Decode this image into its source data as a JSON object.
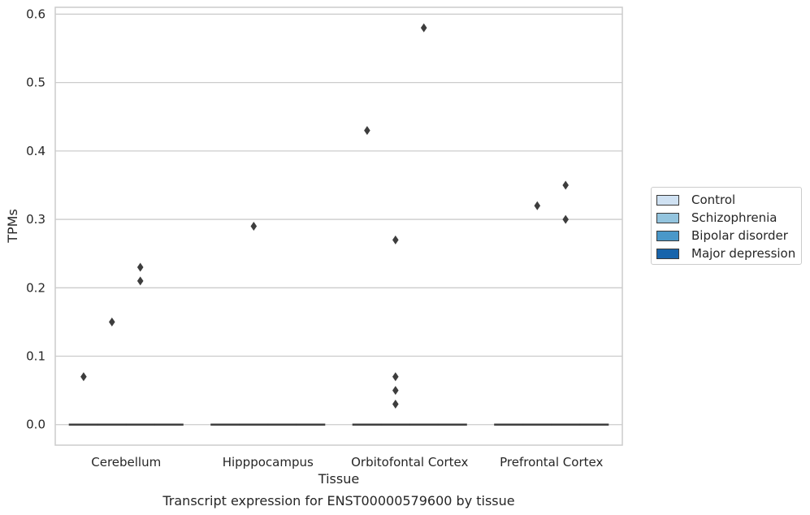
{
  "chart_data": {
    "type": "box",
    "title": "Transcript expression for ENST00000579600 by tissue",
    "xlabel": "Tissue",
    "ylabel": "TPMs",
    "ylim": [
      -0.03,
      0.61
    ],
    "yticks": [
      0.0,
      0.1,
      0.2,
      0.3,
      0.4,
      0.5,
      0.6
    ],
    "ytick_labels": [
      "0.0",
      "0.1",
      "0.2",
      "0.3",
      "0.4",
      "0.5",
      "0.6"
    ],
    "grid": "horizontal",
    "legend_position": "right, outside",
    "categories": [
      "Cerebellum",
      "Hipppocampus",
      "Orbitofontal Cortex",
      "Prefrontal Cortex"
    ],
    "series": [
      {
        "name": "Control",
        "color": "#cfe1f2",
        "median": [
          0,
          0,
          0,
          0
        ],
        "outliers": [
          [
            0.07
          ],
          [],
          [
            0.43
          ],
          []
        ]
      },
      {
        "name": "Schizophrenia",
        "color": "#93c4de",
        "median": [
          0,
          0,
          0,
          0
        ],
        "outliers": [
          [
            0.15
          ],
          [
            0.29
          ],
          [
            0.27,
            0.07,
            0.05,
            0.03
          ],
          [
            0.32
          ]
        ]
      },
      {
        "name": "Bipolar disorder",
        "color": "#4a98c9",
        "median": [
          0,
          0,
          0,
          0
        ],
        "outliers": [
          [
            0.23,
            0.21
          ],
          [],
          [
            0.58
          ],
          [
            0.35,
            0.3
          ]
        ]
      },
      {
        "name": "Major depression",
        "color": "#1764ab",
        "median": [
          0,
          0,
          0,
          0
        ],
        "outliers": [
          [],
          [],
          [],
          []
        ]
      }
    ]
  }
}
